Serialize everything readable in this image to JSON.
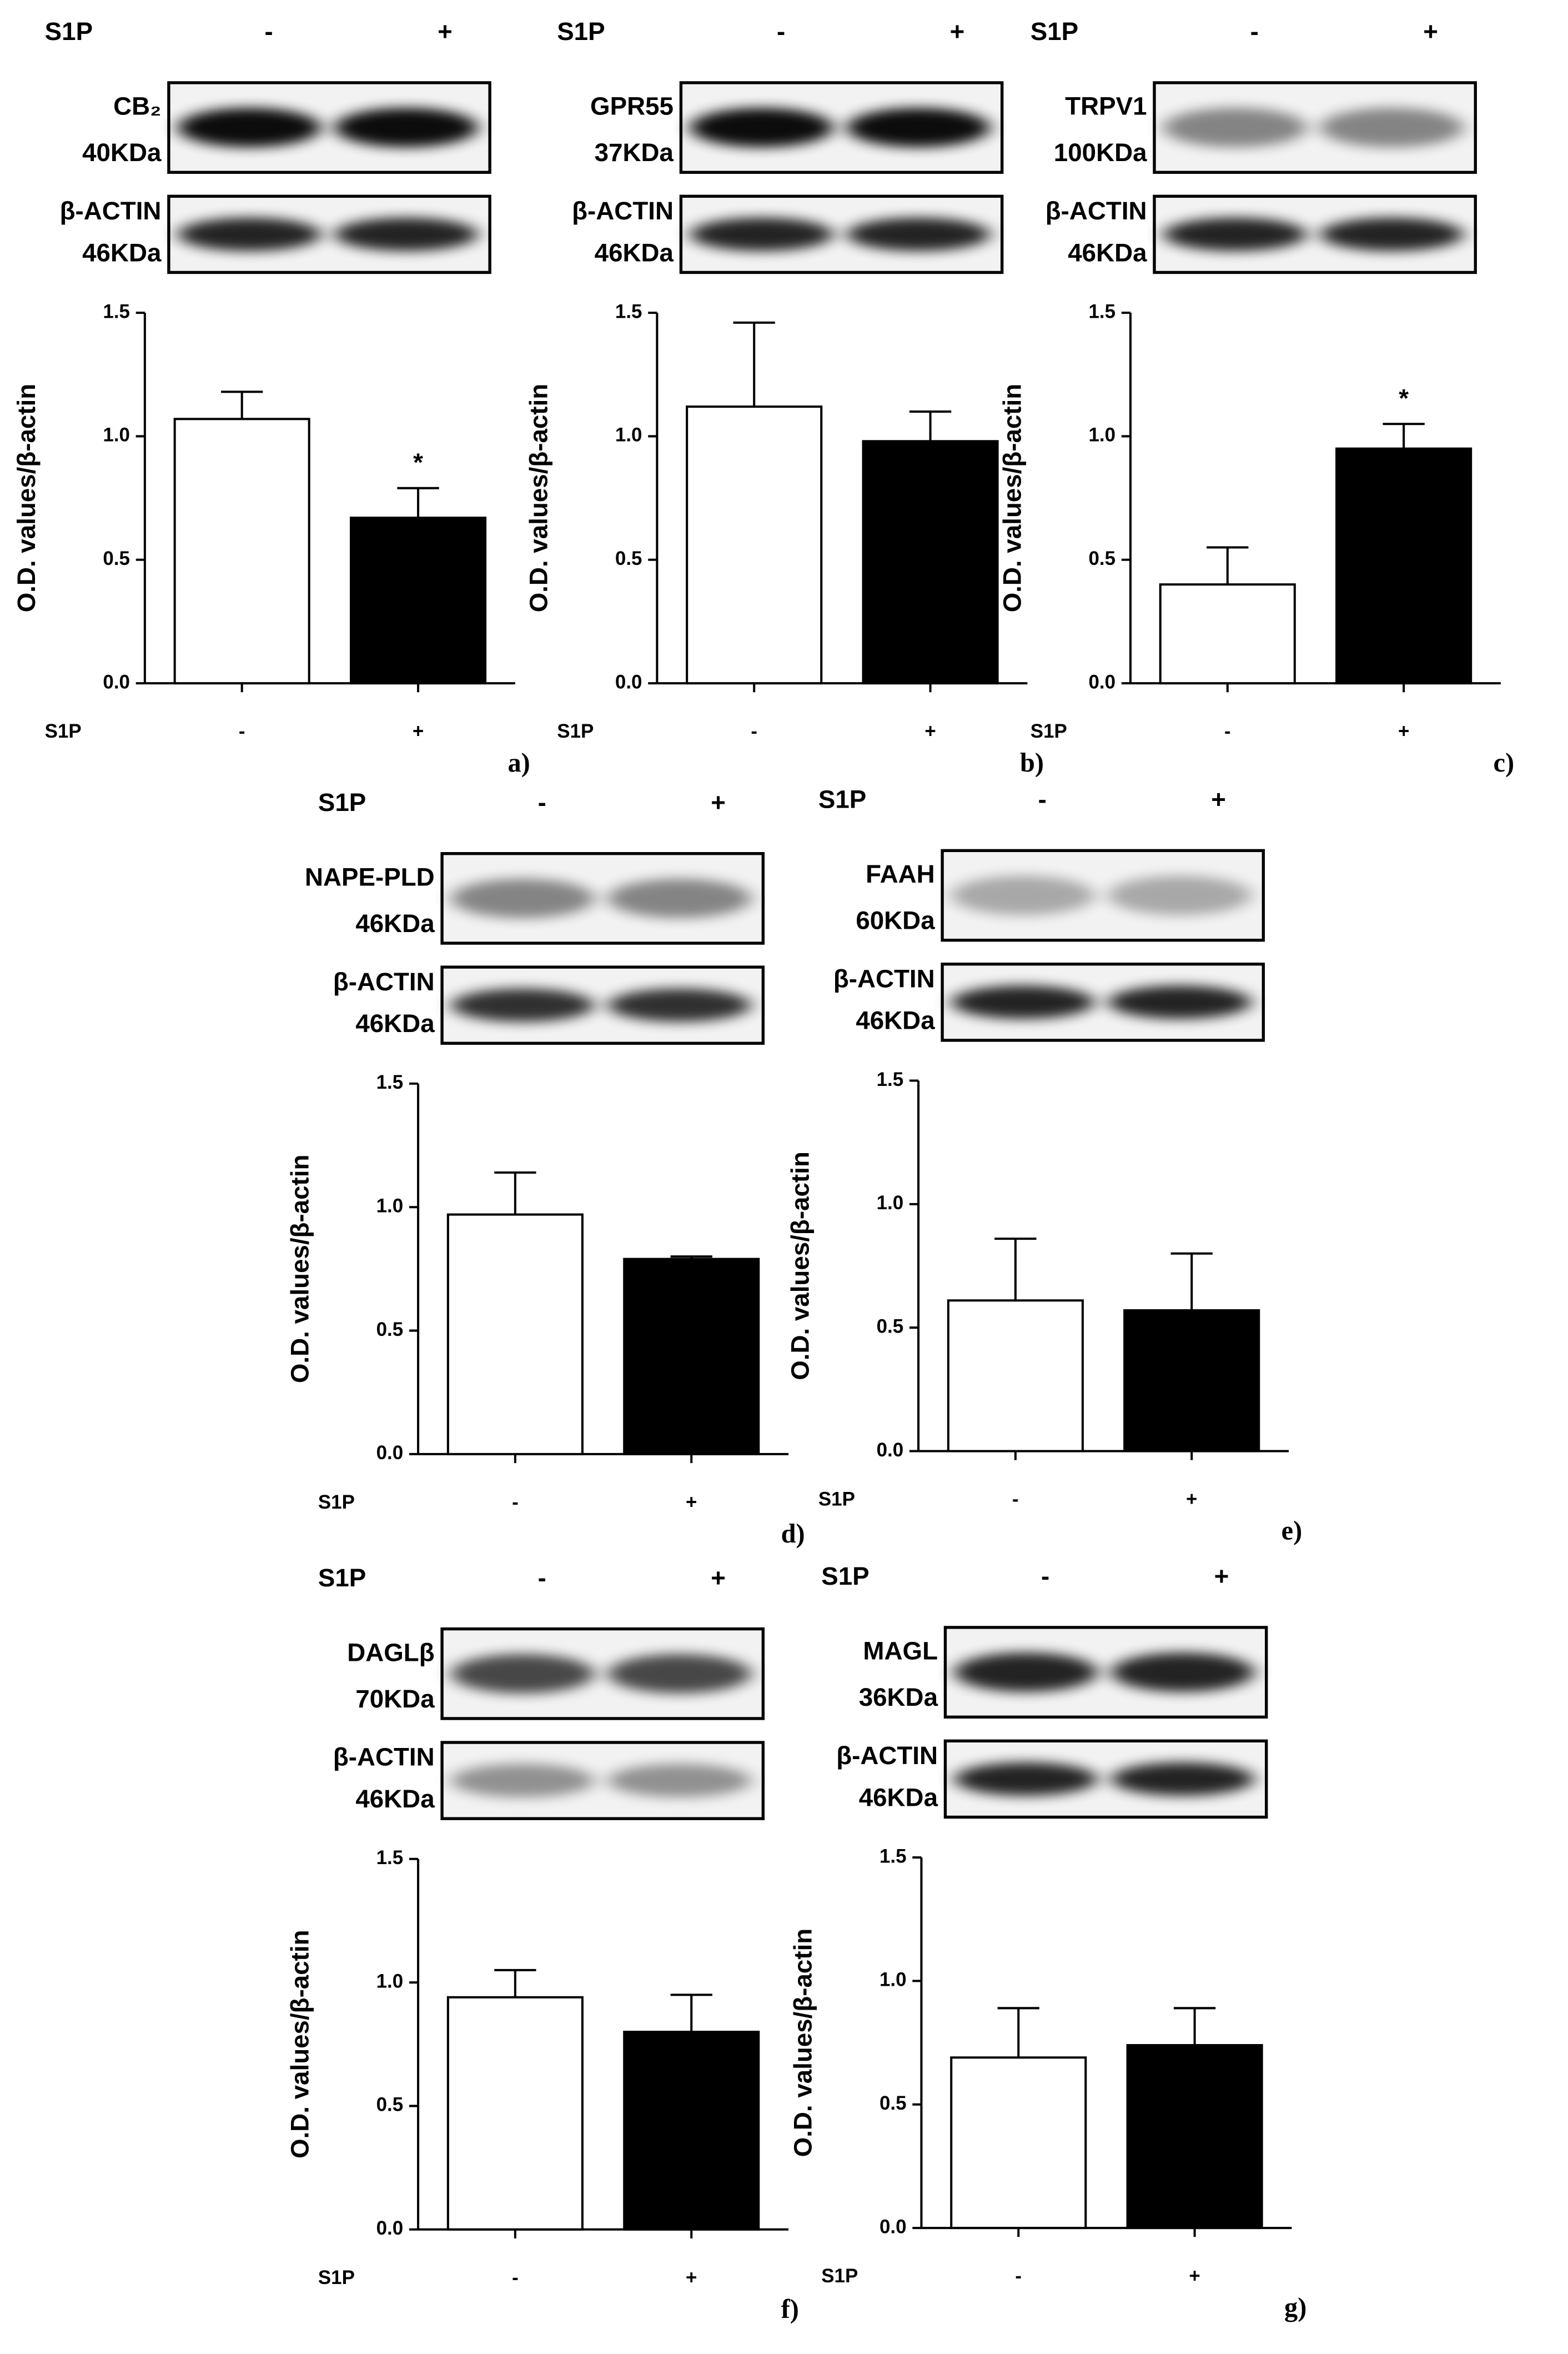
{
  "chart_data": [
    {
      "type": "bar",
      "panel_label": "a)",
      "blot": {
        "treatment": "S1P",
        "lanes": [
          "-",
          "+"
        ],
        "target": "CB₂",
        "target_kda": "40KDa",
        "control": "β-ACTIN",
        "control_kda": "46KDa"
      },
      "y_label": "O.D. values/β-actin",
      "x_label": "S1P",
      "categories": [
        "-",
        "+"
      ],
      "values": [
        1.07,
        0.67
      ],
      "errors": [
        0.11,
        0.12
      ],
      "colors": [
        "#ffffff",
        "#000000"
      ],
      "annotations": [
        {
          "category": "+",
          "text": "*"
        }
      ],
      "ylim": [
        0,
        1.5
      ],
      "yticks": [
        {
          "value": 0,
          "label": "0.0"
        },
        {
          "value": 0.5,
          "label": "0.5"
        },
        {
          "value": 1,
          "label": "1.0"
        },
        {
          "value": 1.5,
          "label": "1.5"
        }
      ]
    },
    {
      "type": "bar",
      "panel_label": "b)",
      "blot": {
        "treatment": "S1P",
        "lanes": [
          "-",
          "+"
        ],
        "target": "GPR55",
        "target_kda": "37KDa",
        "control": "β-ACTIN",
        "control_kda": "46KDa"
      },
      "y_label": "O.D. values/β-actin",
      "x_label": "S1P",
      "categories": [
        "-",
        "+"
      ],
      "values": [
        1.12,
        0.98
      ],
      "errors": [
        0.34,
        0.12
      ],
      "colors": [
        "#ffffff",
        "#000000"
      ],
      "annotations": [],
      "ylim": [
        0,
        1.5
      ],
      "yticks": [
        {
          "value": 0,
          "label": "0.0"
        },
        {
          "value": 0.5,
          "label": "0.5"
        },
        {
          "value": 1,
          "label": "1.0"
        },
        {
          "value": 1.5,
          "label": "1.5"
        }
      ]
    },
    {
      "type": "bar",
      "panel_label": "c)",
      "blot": {
        "treatment": "S1P",
        "lanes": [
          "-",
          "+"
        ],
        "target": "TRPV1",
        "target_kda": "100KDa",
        "control": "β-ACTIN",
        "control_kda": "46KDa"
      },
      "y_label": "O.D. values/β-actin",
      "x_label": "S1P",
      "categories": [
        "-",
        "+"
      ],
      "values": [
        0.4,
        0.95
      ],
      "errors": [
        0.15,
        0.1
      ],
      "colors": [
        "#ffffff",
        "#000000"
      ],
      "annotations": [
        {
          "category": "+",
          "text": "*"
        }
      ],
      "ylim": [
        0,
        1.5
      ],
      "yticks": [
        {
          "value": 0,
          "label": "0.0"
        },
        {
          "value": 0.5,
          "label": "0.5"
        },
        {
          "value": 1,
          "label": "1.0"
        },
        {
          "value": 1.5,
          "label": "1.5"
        }
      ]
    },
    {
      "type": "bar",
      "panel_label": "d)",
      "blot": {
        "treatment": "S1P",
        "lanes": [
          "-",
          "+"
        ],
        "target": "NAPE-PLD",
        "target_kda": "46KDa",
        "control": "β-ACTIN",
        "control_kda": "46KDa"
      },
      "y_label": "O.D. values/β-actin",
      "x_label": "S1P",
      "categories": [
        "-",
        "+"
      ],
      "values": [
        0.97,
        0.79
      ],
      "errors": [
        0.17,
        0.01
      ],
      "colors": [
        "#ffffff",
        "#000000"
      ],
      "annotations": [],
      "ylim": [
        0,
        1.5
      ],
      "yticks": [
        {
          "value": 0,
          "label": "0.0"
        },
        {
          "value": 0.5,
          "label": "0.5"
        },
        {
          "value": 1,
          "label": "1.0"
        },
        {
          "value": 1.5,
          "label": "1.5"
        }
      ]
    },
    {
      "type": "bar",
      "panel_label": "e)",
      "blot": {
        "treatment": "S1P",
        "lanes": [
          "-",
          "+"
        ],
        "target": "FAAH",
        "target_kda": "60KDa",
        "control": "β-ACTIN",
        "control_kda": "46KDa"
      },
      "y_label": "O.D. values/β-actin",
      "x_label": "S1P",
      "categories": [
        "-",
        "+"
      ],
      "values": [
        0.61,
        0.57
      ],
      "errors": [
        0.25,
        0.23
      ],
      "colors": [
        "#ffffff",
        "#000000"
      ],
      "annotations": [],
      "ylim": [
        0,
        1.5
      ],
      "yticks": [
        {
          "value": 0,
          "label": "0.0"
        },
        {
          "value": 0.5,
          "label": "0.5"
        },
        {
          "value": 1,
          "label": "1.0"
        },
        {
          "value": 1.5,
          "label": "1.5"
        }
      ]
    },
    {
      "type": "bar",
      "panel_label": "f)",
      "blot": {
        "treatment": "S1P",
        "lanes": [
          "-",
          "+"
        ],
        "target": "DAGLβ",
        "target_kda": "70KDa",
        "control": "β-ACTIN",
        "control_kda": "46KDa"
      },
      "y_label": "O.D. values/β-actin",
      "x_label": "S1P",
      "categories": [
        "-",
        "+"
      ],
      "values": [
        0.94,
        0.8
      ],
      "errors": [
        0.11,
        0.15
      ],
      "colors": [
        "#ffffff",
        "#000000"
      ],
      "annotations": [],
      "ylim": [
        0,
        1.5
      ],
      "yticks": [
        {
          "value": 0,
          "label": "0.0"
        },
        {
          "value": 0.5,
          "label": "0.5"
        },
        {
          "value": 1,
          "label": "1.0"
        },
        {
          "value": 1.5,
          "label": "1.5"
        }
      ]
    },
    {
      "type": "bar",
      "panel_label": "g)",
      "blot": {
        "treatment": "S1P",
        "lanes": [
          "-",
          "+"
        ],
        "target": "MAGL",
        "target_kda": "36KDa",
        "control": "β-ACTIN",
        "control_kda": "46KDa"
      },
      "y_label": "O.D. values/β-actin",
      "x_label": "S1P",
      "categories": [
        "-",
        "+"
      ],
      "values": [
        0.69,
        0.74
      ],
      "errors": [
        0.2,
        0.15
      ],
      "colors": [
        "#ffffff",
        "#000000"
      ],
      "annotations": [],
      "ylim": [
        0,
        1.5
      ],
      "yticks": [
        {
          "value": 0,
          "label": "0.0"
        },
        {
          "value": 0.5,
          "label": "0.5"
        },
        {
          "value": 1,
          "label": "1.0"
        },
        {
          "value": 1.5,
          "label": "1.5"
        }
      ]
    }
  ]
}
